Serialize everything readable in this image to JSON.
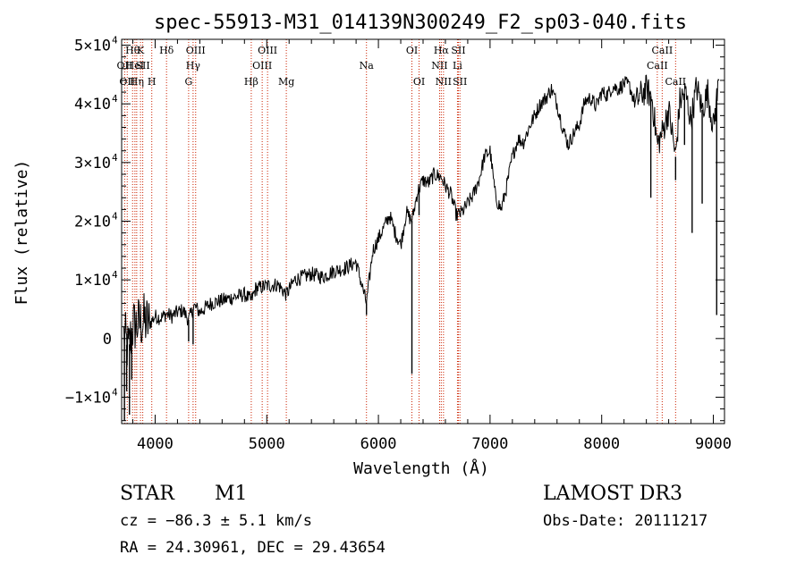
{
  "chart_data": {
    "type": "line",
    "title": "spec-55913-M31_014139N300249_F2_sp03-040.fits",
    "xlabel": "Wavelength (Å)",
    "ylabel": "Flux (relative)",
    "xlim": [
      3700,
      9100
    ],
    "ylim": [
      -14500,
      51000
    ],
    "x_ticks": [
      {
        "value": 4000,
        "label": "4000"
      },
      {
        "value": 5000,
        "label": "5000"
      },
      {
        "value": 6000,
        "label": "6000"
      },
      {
        "value": 7000,
        "label": "7000"
      },
      {
        "value": 8000,
        "label": "8000"
      },
      {
        "value": 9000,
        "label": "9000"
      }
    ],
    "y_ticks": [
      {
        "value": -10000,
        "mantissa": "−1×10",
        "exp": "4"
      },
      {
        "value": 0,
        "mantissa": "0",
        "exp": ""
      },
      {
        "value": 10000,
        "mantissa": "1×10",
        "exp": "4"
      },
      {
        "value": 20000,
        "mantissa": "2×10",
        "exp": "4"
      },
      {
        "value": 30000,
        "mantissa": "3×10",
        "exp": "4"
      },
      {
        "value": 40000,
        "mantissa": "4×10",
        "exp": "4"
      },
      {
        "value": 50000,
        "mantissa": "5×10",
        "exp": "4"
      }
    ],
    "spectrum_points": [
      [
        3720,
        500
      ],
      [
        3760,
        -2000
      ],
      [
        3800,
        2000
      ],
      [
        3850,
        2500
      ],
      [
        3900,
        3000
      ],
      [
        3950,
        2500
      ],
      [
        4000,
        3800
      ],
      [
        4050,
        3500
      ],
      [
        4100,
        4200
      ],
      [
        4150,
        3800
      ],
      [
        4200,
        4500
      ],
      [
        4250,
        4800
      ],
      [
        4300,
        3200
      ],
      [
        4350,
        5500
      ],
      [
        4400,
        4500
      ],
      [
        4500,
        6000
      ],
      [
        4600,
        6500
      ],
      [
        4700,
        7000
      ],
      [
        4800,
        7500
      ],
      [
        4861,
        6500
      ],
      [
        4900,
        8500
      ],
      [
        5000,
        9000
      ],
      [
        5100,
        9200
      ],
      [
        5175,
        7500
      ],
      [
        5250,
        10000
      ],
      [
        5400,
        11000
      ],
      [
        5500,
        10500
      ],
      [
        5600,
        11500
      ],
      [
        5700,
        12000
      ],
      [
        5800,
        13000
      ],
      [
        5893,
        6000
      ],
      [
        5950,
        15000
      ],
      [
        6000,
        17000
      ],
      [
        6050,
        19000
      ],
      [
        6100,
        21000
      ],
      [
        6150,
        18000
      ],
      [
        6200,
        16000
      ],
      [
        6250,
        21500
      ],
      [
        6300,
        20000
      ],
      [
        6350,
        25000
      ],
      [
        6400,
        27000
      ],
      [
        6450,
        26500
      ],
      [
        6500,
        28000
      ],
      [
        6563,
        27500
      ],
      [
        6600,
        26000
      ],
      [
        6650,
        24500
      ],
      [
        6700,
        21000
      ],
      [
        6750,
        21500
      ],
      [
        6800,
        23000
      ],
      [
        6850,
        24500
      ],
      [
        6900,
        27000
      ],
      [
        6950,
        31000
      ],
      [
        7000,
        32000
      ],
      [
        7050,
        24000
      ],
      [
        7100,
        22000
      ],
      [
        7150,
        26000
      ],
      [
        7200,
        31000
      ],
      [
        7250,
        34000
      ],
      [
        7300,
        33500
      ],
      [
        7350,
        36000
      ],
      [
        7400,
        38000
      ],
      [
        7450,
        40000
      ],
      [
        7500,
        41000
      ],
      [
        7550,
        42500
      ],
      [
        7600,
        40000
      ],
      [
        7650,
        36000
      ],
      [
        7700,
        33000
      ],
      [
        7750,
        35000
      ],
      [
        7800,
        36500
      ],
      [
        7850,
        40500
      ],
      [
        7900,
        41000
      ],
      [
        7950,
        39500
      ],
      [
        8000,
        42000
      ],
      [
        8050,
        41500
      ],
      [
        8100,
        43000
      ],
      [
        8150,
        42500
      ],
      [
        8200,
        43500
      ],
      [
        8250,
        43000
      ],
      [
        8300,
        40000
      ],
      [
        8350,
        41500
      ],
      [
        8400,
        42500
      ],
      [
        8450,
        41000
      ],
      [
        8498,
        33000
      ],
      [
        8542,
        35000
      ],
      [
        8600,
        39000
      ],
      [
        8662,
        31000
      ],
      [
        8700,
        40500
      ],
      [
        8750,
        42000
      ],
      [
        8800,
        37000
      ],
      [
        8850,
        43000
      ],
      [
        8900,
        39000
      ],
      [
        8950,
        42000
      ],
      [
        9000,
        36000
      ],
      [
        9050,
        44000
      ]
    ],
    "spectrum_spikes": [
      [
        3725,
        -14000
      ],
      [
        3745,
        -9000
      ],
      [
        3770,
        -13000
      ],
      [
        3790,
        -7000
      ],
      [
        4300,
        -500
      ],
      [
        4340,
        -1000
      ],
      [
        5893,
        4000
      ],
      [
        6300,
        -6000
      ],
      [
        6364,
        21000
      ],
      [
        8440,
        24000
      ],
      [
        8662,
        27000
      ],
      [
        8742,
        33000
      ],
      [
        8810,
        18000
      ],
      [
        8900,
        23000
      ],
      [
        9030,
        4000
      ]
    ],
    "spectral_lines": [
      {
        "wl": 3727,
        "label": "OII",
        "row": 2
      },
      {
        "wl": 3750,
        "label": "OII",
        "row": 3
      },
      {
        "wl": 3798,
        "label": "Hθ",
        "row": 1
      },
      {
        "wl": 3819,
        "label": "HeI",
        "row": 2
      },
      {
        "wl": 3835,
        "label": "Hη",
        "row": 3
      },
      {
        "wl": 3869,
        "label": "K",
        "row": 1
      },
      {
        "wl": 3889,
        "label": "SII",
        "row": 2
      },
      {
        "wl": 3970,
        "label": "H",
        "row": 3
      },
      {
        "wl": 4102,
        "label": "Hδ",
        "row": 1
      },
      {
        "wl": 4300,
        "label": "G",
        "row": 3
      },
      {
        "wl": 4340,
        "label": "Hγ",
        "row": 2
      },
      {
        "wl": 4363,
        "label": "OIII",
        "row": 1
      },
      {
        "wl": 4861,
        "label": "Hβ",
        "row": 3
      },
      {
        "wl": 4959,
        "label": "OIII",
        "row": 2
      },
      {
        "wl": 5007,
        "label": "OIII",
        "row": 1
      },
      {
        "wl": 5175,
        "label": "Mg",
        "row": 3
      },
      {
        "wl": 5893,
        "label": "Na",
        "row": 2
      },
      {
        "wl": 6300,
        "label": "OI",
        "row": 1
      },
      {
        "wl": 6364,
        "label": "OI",
        "row": 3
      },
      {
        "wl": 6548,
        "label": "NII",
        "row": 2
      },
      {
        "wl": 6563,
        "label": "Hα",
        "row": 1
      },
      {
        "wl": 6583,
        "label": "NII",
        "row": 3
      },
      {
        "wl": 6708,
        "label": "Li",
        "row": 2
      },
      {
        "wl": 6716,
        "label": "SII",
        "row": 1
      },
      {
        "wl": 6730,
        "label": "SII",
        "row": 3
      },
      {
        "wl": 8498,
        "label": "CaII",
        "row": 2
      },
      {
        "wl": 8542,
        "label": "CaII",
        "row": 1
      },
      {
        "wl": 8662,
        "label": "CaII",
        "row": 3
      }
    ],
    "line_color": "#000000",
    "marker_color": "#cc2200"
  },
  "info": {
    "class": "STAR",
    "subclass": "M1",
    "survey": "LAMOST DR3",
    "velocity": "cz = −86.3 ± 5.1 km/s",
    "obs_date": "Obs-Date: 20111217",
    "coords": "RA =  24.30961, DEC =  29.43654"
  }
}
